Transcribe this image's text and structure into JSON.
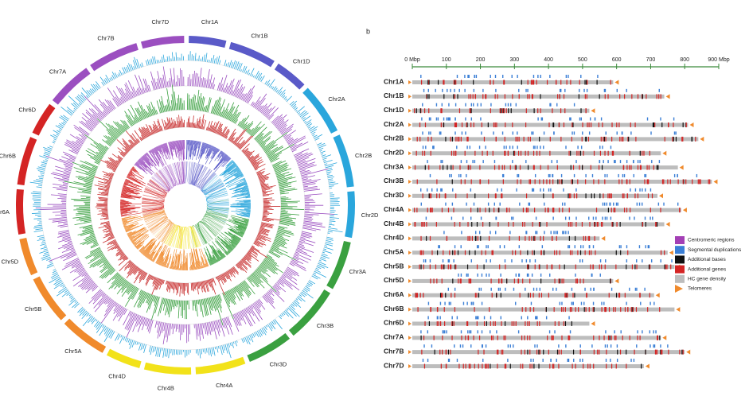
{
  "panel_label": "b",
  "chart_data": {
    "type": "genome-track",
    "xlim": [
      0,
      900
    ],
    "xticks": [
      {
        "value": 0,
        "label": "0 Mbp"
      },
      100,
      200,
      300,
      400,
      500,
      600,
      700,
      800,
      {
        "value": 900,
        "label": "900 Mbp"
      }
    ],
    "axis_color": "#3a8a3a",
    "categories": [
      "Chr1A",
      "Chr1B",
      "Chr1D",
      "Chr2A",
      "Chr2B",
      "Chr2D",
      "Chr3A",
      "Chr3B",
      "Chr3D",
      "Chr4A",
      "Chr4B",
      "Chr4D",
      "Chr5A",
      "Chr5B",
      "Chr5D",
      "Chr6A",
      "Chr6B",
      "Chr6D",
      "Chr7A",
      "Chr7B",
      "Chr7D"
    ],
    "values": [
      590,
      740,
      520,
      810,
      840,
      730,
      780,
      880,
      720,
      790,
      740,
      550,
      750,
      770,
      590,
      710,
      770,
      520,
      730,
      800,
      680
    ],
    "legend": [
      {
        "name": "Centromeric regions",
        "color": "#a33fb5"
      },
      {
        "name": "Segmental duplications",
        "color": "#3b7fd6"
      },
      {
        "name": "Additional bases",
        "color": "#111111"
      },
      {
        "name": "Additional genes",
        "color": "#d42424"
      },
      {
        "name": "HC gene density",
        "color": "#bdbdbd"
      },
      {
        "name": "Telomeres",
        "color": "#f08a2c"
      }
    ],
    "group_colors": [
      "#5a5ac8",
      "#2aa6dc",
      "#3aa040",
      "#f2e21a",
      "#f08a2c",
      "#d42424",
      "#9b4fc0"
    ]
  }
}
